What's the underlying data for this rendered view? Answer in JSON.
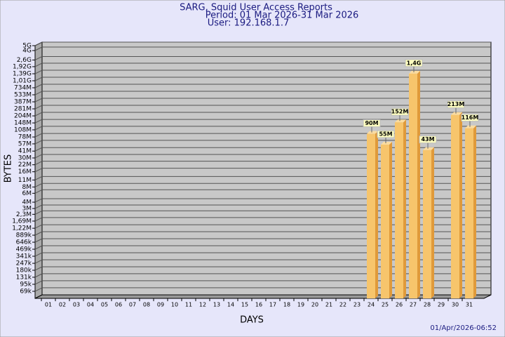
{
  "chart_data": {
    "type": "bar",
    "title": "SARG, Squid User Access Reports",
    "subtitle": "Period: 01 Mar 2026-31 Mar 2026",
    "user": "User: 192.168.1.7",
    "x_label": "DAYS",
    "y_label": "BYTES",
    "footer": "01/Apr/2026-06:52",
    "categories": [
      "01",
      "02",
      "03",
      "04",
      "05",
      "06",
      "07",
      "08",
      "09",
      "10",
      "11",
      "12",
      "13",
      "14",
      "15",
      "16",
      "17",
      "18",
      "19",
      "20",
      "21",
      "22",
      "23",
      "24",
      "25",
      "26",
      "27",
      "28",
      "29",
      "30",
      "31"
    ],
    "values": [
      null,
      null,
      null,
      null,
      null,
      null,
      null,
      null,
      null,
      null,
      null,
      null,
      null,
      null,
      null,
      null,
      null,
      null,
      null,
      null,
      null,
      null,
      null,
      90000000,
      55000000,
      152000000,
      1400000000,
      43000000,
      null,
      213000000,
      116000000
    ],
    "value_labels": [
      null,
      null,
      null,
      null,
      null,
      null,
      null,
      null,
      null,
      null,
      null,
      null,
      null,
      null,
      null,
      null,
      null,
      null,
      null,
      null,
      null,
      null,
      null,
      "90M",
      "55M",
      "152M",
      "1,4G",
      "43M",
      null,
      "213M",
      "116M"
    ],
    "color": "#f7c56c",
    "log_scale": true,
    "grid": true,
    "ylim": [
      50000,
      5870000000
    ],
    "yticks": [
      {
        "value": 69000,
        "label": "69k"
      },
      {
        "value": 95000,
        "label": "95k"
      },
      {
        "value": 131000,
        "label": "131k"
      },
      {
        "value": 180000,
        "label": "180k"
      },
      {
        "value": 247000,
        "label": "247k"
      },
      {
        "value": 341000,
        "label": "341k"
      },
      {
        "value": 469000,
        "label": "469k"
      },
      {
        "value": 646000,
        "label": "646k"
      },
      {
        "value": 889000,
        "label": "889k"
      },
      {
        "value": 1220000,
        "label": "1,22M"
      },
      {
        "value": 1690000,
        "label": "1,69M"
      },
      {
        "value": 2300000,
        "label": "2,3M"
      },
      {
        "value": 3000000,
        "label": "3M"
      },
      {
        "value": 4000000,
        "label": "4M"
      },
      {
        "value": 6000000,
        "label": "6M"
      },
      {
        "value": 8000000,
        "label": "8M"
      },
      {
        "value": 11000000,
        "label": "11M"
      },
      {
        "value": 16000000,
        "label": "16M"
      },
      {
        "value": 22000000,
        "label": "22M"
      },
      {
        "value": 30000000,
        "label": "30M"
      },
      {
        "value": 41000000,
        "label": "41M"
      },
      {
        "value": 57000000,
        "label": "57M"
      },
      {
        "value": 78000000,
        "label": "78M"
      },
      {
        "value": 108000000,
        "label": "108M"
      },
      {
        "value": 148000000,
        "label": "148M"
      },
      {
        "value": 204000000,
        "label": "204M"
      },
      {
        "value": 281000000,
        "label": "281M"
      },
      {
        "value": 387000000,
        "label": "387M"
      },
      {
        "value": 533000000,
        "label": "533M"
      },
      {
        "value": 734000000,
        "label": "734M"
      },
      {
        "value": 1010000000,
        "label": "1,01G"
      },
      {
        "value": 1390000000,
        "label": "1,39G"
      },
      {
        "value": 1920000000,
        "label": "1,92G"
      },
      {
        "value": 2600000000,
        "label": "2,6G"
      },
      {
        "value": 4000000000,
        "label": "4G"
      },
      {
        "value": 5000000000,
        "label": "5G"
      }
    ]
  }
}
